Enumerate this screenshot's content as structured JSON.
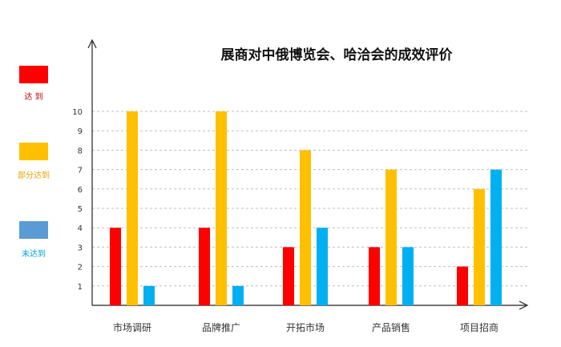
{
  "chart_data": {
    "type": "bar",
    "title": "展商对中俄博览会、哈洽会的成效评价",
    "categories": [
      "市场调研",
      "品牌推广",
      "开拓市场",
      "产品销售",
      "项目招商"
    ],
    "series": [
      {
        "name": "达 到",
        "color": "#ff0000",
        "values": [
          4,
          4,
          3,
          3,
          2
        ]
      },
      {
        "name": "部分达到",
        "color": "#ffc000",
        "values": [
          10,
          10,
          8,
          7,
          6
        ]
      },
      {
        "name": "未达到",
        "color": "#00b0f0",
        "values": [
          1,
          1,
          4,
          3,
          7
        ]
      }
    ],
    "legend_swatch_colors": [
      "#ff0000",
      "#ffc000",
      "#5b9bd5"
    ],
    "legend_label_colors": [
      "#c00000",
      "#f0a000",
      "#00a0e0"
    ],
    "ylim": [
      0,
      11
    ],
    "yticks": [
      1,
      2,
      3,
      4,
      5,
      6,
      7,
      8,
      9,
      10
    ],
    "grid": "dashed",
    "legend": "left"
  }
}
